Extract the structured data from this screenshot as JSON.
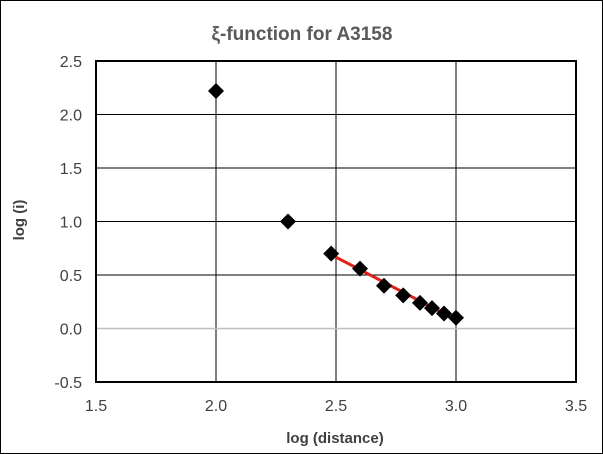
{
  "chart_data": {
    "type": "scatter",
    "title": "ξ-function for  A3158",
    "xlabel": "log (distance)",
    "ylabel": "log (i)",
    "xlim": [
      1.5,
      3.5
    ],
    "ylim": [
      -0.5,
      2.5
    ],
    "xticks": [
      1.5,
      2.0,
      2.5,
      3.0,
      3.5
    ],
    "yticks": [
      -0.5,
      0.0,
      0.5,
      1.0,
      1.5,
      2.0,
      2.5
    ],
    "xtick_labels": [
      "1.5",
      "2.0",
      "2.5",
      "3.0",
      "3.5"
    ],
    "ytick_labels": [
      "-0.5",
      "0.0",
      "0.5",
      "1.0",
      "1.5",
      "2.0",
      "2.5"
    ],
    "grid": true,
    "points": [
      {
        "x": 2.0,
        "y": 2.22
      },
      {
        "x": 2.3,
        "y": 1.0
      },
      {
        "x": 2.48,
        "y": 0.7
      },
      {
        "x": 2.6,
        "y": 0.56
      },
      {
        "x": 2.7,
        "y": 0.4
      },
      {
        "x": 2.78,
        "y": 0.31
      },
      {
        "x": 2.85,
        "y": 0.24
      },
      {
        "x": 2.9,
        "y": 0.19
      },
      {
        "x": 2.95,
        "y": 0.14
      },
      {
        "x": 3.0,
        "y": 0.1
      }
    ],
    "fit_line": {
      "x": [
        2.48,
        3.0
      ],
      "y": [
        0.69,
        0.08
      ]
    },
    "colors": {
      "marker": "#000000",
      "fit_line": "#e0201b",
      "zero_line": "#bfbfbf",
      "grid": "#000000"
    }
  }
}
